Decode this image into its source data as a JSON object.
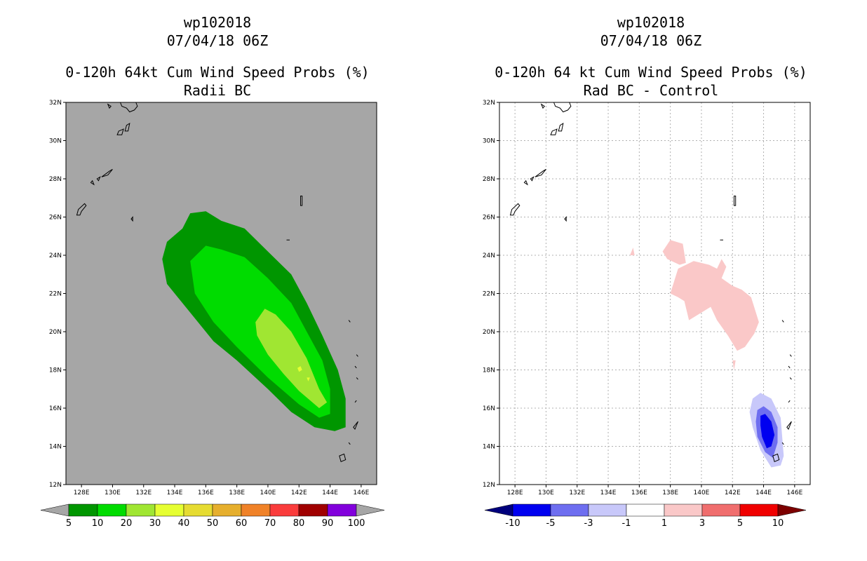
{
  "left": {
    "title_lines": [
      "wp102018",
      "07/04/18 06Z"
    ],
    "subtitle_lines": [
      "0-120h 64kt Cum Wind Speed Probs (%)",
      "Radii BC"
    ],
    "colorbar": {
      "colors": [
        "#009600",
        "#00dc00",
        "#a0e632",
        "#e6ff32",
        "#e6dc32",
        "#e6af2d",
        "#f08228",
        "#fa3c3c",
        "#a00000",
        "#8200dc"
      ],
      "labels": [
        "5",
        "10",
        "20",
        "30",
        "40",
        "50",
        "60",
        "70",
        "80",
        "90",
        "100"
      ],
      "under_color": "#a6a6a6",
      "over_color": "#a6a6a6"
    }
  },
  "right": {
    "title_lines": [
      "wp102018",
      "07/04/18 06Z"
    ],
    "subtitle_lines": [
      "0-120h 64 kt Cum Wind Speed Probs (%)",
      "Rad BC - Control"
    ],
    "colorbar": {
      "colors": [
        "#0000f0",
        "#6e6ef0",
        "#c8c8fa",
        "#ffffff",
        "#fac8c8",
        "#f06e6e",
        "#f00000"
      ],
      "labels": [
        "-10",
        "-5",
        "-3",
        "-1",
        "1",
        "3",
        "5",
        "10"
      ],
      "under_color": "#00007d",
      "over_color": "#7d0000"
    }
  },
  "chart_data": [
    {
      "type": "heatmap",
      "title": "0-120h 64kt Cum Wind Speed Probs (%)",
      "subtitle": "Radii BC",
      "xlim": [
        127,
        147
      ],
      "ylim": [
        12,
        32
      ],
      "x_ticks": [
        "128E",
        "130E",
        "132E",
        "134E",
        "136E",
        "138E",
        "140E",
        "142E",
        "144E",
        "146E"
      ],
      "y_ticks": [
        "12N",
        "14N",
        "16N",
        "18N",
        "20N",
        "22N",
        "24N",
        "26N",
        "28N",
        "30N",
        "32N"
      ],
      "background": "#a6a6a6",
      "grid": false,
      "regions": [
        {
          "level": "5-10",
          "color": "#009600",
          "polygon": [
            [
              133.5,
              24.7
            ],
            [
              134.5,
              25.4
            ],
            [
              135.0,
              26.2
            ],
            [
              136.0,
              26.3
            ],
            [
              137.0,
              25.8
            ],
            [
              138.5,
              25.4
            ],
            [
              140.0,
              24.2
            ],
            [
              141.5,
              23.0
            ],
            [
              142.5,
              21.5
            ],
            [
              143.5,
              19.8
            ],
            [
              144.5,
              18.0
            ],
            [
              145.0,
              16.5
            ],
            [
              145.0,
              15.0
            ],
            [
              144.3,
              14.8
            ],
            [
              143.0,
              15.0
            ],
            [
              141.5,
              15.8
            ],
            [
              140.0,
              17.0
            ],
            [
              138.0,
              18.5
            ],
            [
              136.5,
              19.5
            ],
            [
              135.0,
              21.0
            ],
            [
              133.5,
              22.5
            ],
            [
              133.2,
              23.8
            ]
          ]
        },
        {
          "level": "10-20",
          "color": "#00dc00",
          "polygon": [
            [
              135.0,
              23.7
            ],
            [
              136.0,
              24.5
            ],
            [
              137.0,
              24.3
            ],
            [
              138.5,
              23.9
            ],
            [
              140.0,
              22.8
            ],
            [
              141.5,
              21.5
            ],
            [
              142.5,
              20.0
            ],
            [
              143.5,
              18.5
            ],
            [
              144.0,
              17.0
            ],
            [
              144.0,
              15.7
            ],
            [
              143.3,
              15.5
            ],
            [
              142.0,
              16.2
            ],
            [
              140.0,
              17.6
            ],
            [
              138.0,
              19.2
            ],
            [
              136.5,
              20.5
            ],
            [
              135.3,
              22.0
            ]
          ]
        },
        {
          "level": "20-30",
          "color": "#a0e632",
          "polygon": [
            [
              139.2,
              20.5
            ],
            [
              139.8,
              21.2
            ],
            [
              140.5,
              20.9
            ],
            [
              141.5,
              20.0
            ],
            [
              142.5,
              18.6
            ],
            [
              143.3,
              17.0
            ],
            [
              143.8,
              16.3
            ],
            [
              143.3,
              16.0
            ],
            [
              142.0,
              16.9
            ],
            [
              141.0,
              17.8
            ],
            [
              140.0,
              18.8
            ],
            [
              139.3,
              19.8
            ]
          ]
        },
        {
          "level": "30-40",
          "color": "#e6ff32",
          "polygon": [
            [
              141.9,
              18.1
            ],
            [
              142.1,
              18.2
            ],
            [
              142.2,
              18.0
            ],
            [
              142.0,
              17.9
            ]
          ]
        },
        {
          "level": "30-40",
          "color": "#e6ff32",
          "polygon": [
            [
              142.5,
              17.6
            ],
            [
              142.7,
              17.6
            ],
            [
              142.6,
              17.4
            ]
          ]
        }
      ]
    },
    {
      "type": "heatmap",
      "title": "0-120h 64 kt Cum Wind Speed Probs (%)",
      "subtitle": "Rad BC - Control",
      "xlim": [
        127,
        147
      ],
      "ylim": [
        12,
        32
      ],
      "x_ticks": [
        "128E",
        "130E",
        "132E",
        "134E",
        "136E",
        "138E",
        "140E",
        "142E",
        "144E",
        "146E"
      ],
      "y_ticks": [
        "12N",
        "14N",
        "16N",
        "18N",
        "20N",
        "22N",
        "24N",
        "26N",
        "28N",
        "30N",
        "32N"
      ],
      "background": "#ffffff",
      "grid": true,
      "regions": [
        {
          "level": "1-3",
          "color": "#fac8c8",
          "polygon": [
            [
              137.5,
              24.2
            ],
            [
              138.0,
              24.8
            ],
            [
              138.8,
              24.6
            ],
            [
              139.0,
              23.6
            ],
            [
              138.6,
              23.5
            ],
            [
              137.8,
              23.8
            ]
          ]
        },
        {
          "level": "1-3",
          "color": "#fac8c8",
          "polygon": [
            [
              135.4,
              24.0
            ],
            [
              135.7,
              24.0
            ],
            [
              135.6,
              24.4
            ]
          ]
        },
        {
          "level": "1-3",
          "color": "#fac8c8",
          "polygon": [
            [
              138.0,
              22.0
            ],
            [
              138.5,
              23.3
            ],
            [
              139.5,
              23.7
            ],
            [
              140.5,
              23.5
            ],
            [
              141.0,
              23.3
            ],
            [
              141.3,
              23.8
            ],
            [
              141.6,
              23.4
            ],
            [
              141.3,
              22.8
            ],
            [
              142.0,
              22.4
            ],
            [
              142.6,
              22.2
            ],
            [
              143.2,
              21.8
            ],
            [
              143.7,
              20.5
            ],
            [
              143.4,
              19.9
            ],
            [
              142.8,
              19.2
            ],
            [
              142.3,
              19.0
            ],
            [
              141.7,
              19.8
            ],
            [
              141.0,
              20.6
            ],
            [
              140.6,
              21.3
            ],
            [
              140.0,
              21.0
            ],
            [
              139.2,
              20.6
            ],
            [
              138.9,
              21.6
            ],
            [
              138.5,
              21.8
            ]
          ]
        },
        {
          "level": "1-3",
          "color": "#fac8c8",
          "polygon": [
            [
              142.0,
              18.5
            ],
            [
              142.2,
              18.5
            ],
            [
              142.1,
              18.0
            ]
          ]
        },
        {
          "level": "-3--1",
          "color": "#c8c8fa",
          "polygon": [
            [
              143.3,
              16.5
            ],
            [
              143.8,
              16.8
            ],
            [
              144.5,
              16.5
            ],
            [
              145.1,
              15.5
            ],
            [
              145.2,
              14.5
            ],
            [
              145.3,
              13.5
            ],
            [
              145.1,
              13.0
            ],
            [
              144.5,
              12.9
            ],
            [
              143.8,
              13.8
            ],
            [
              143.3,
              15.0
            ],
            [
              143.1,
              15.8
            ]
          ]
        },
        {
          "level": "-5--3",
          "color": "#6e6ef0",
          "polygon": [
            [
              143.6,
              15.9
            ],
            [
              144.0,
              16.1
            ],
            [
              144.5,
              15.8
            ],
            [
              144.9,
              15.0
            ],
            [
              144.9,
              14.2
            ],
            [
              144.6,
              13.4
            ],
            [
              144.1,
              13.7
            ],
            [
              143.6,
              14.5
            ],
            [
              143.5,
              15.3
            ]
          ]
        },
        {
          "level": "-10--5",
          "color": "#0000f0",
          "polygon": [
            [
              143.8,
              15.6
            ],
            [
              144.1,
              15.7
            ],
            [
              144.5,
              15.3
            ],
            [
              144.7,
              14.6
            ],
            [
              144.5,
              14.0
            ],
            [
              144.2,
              13.9
            ],
            [
              143.9,
              14.5
            ],
            [
              143.8,
              15.1
            ]
          ]
        }
      ]
    }
  ]
}
